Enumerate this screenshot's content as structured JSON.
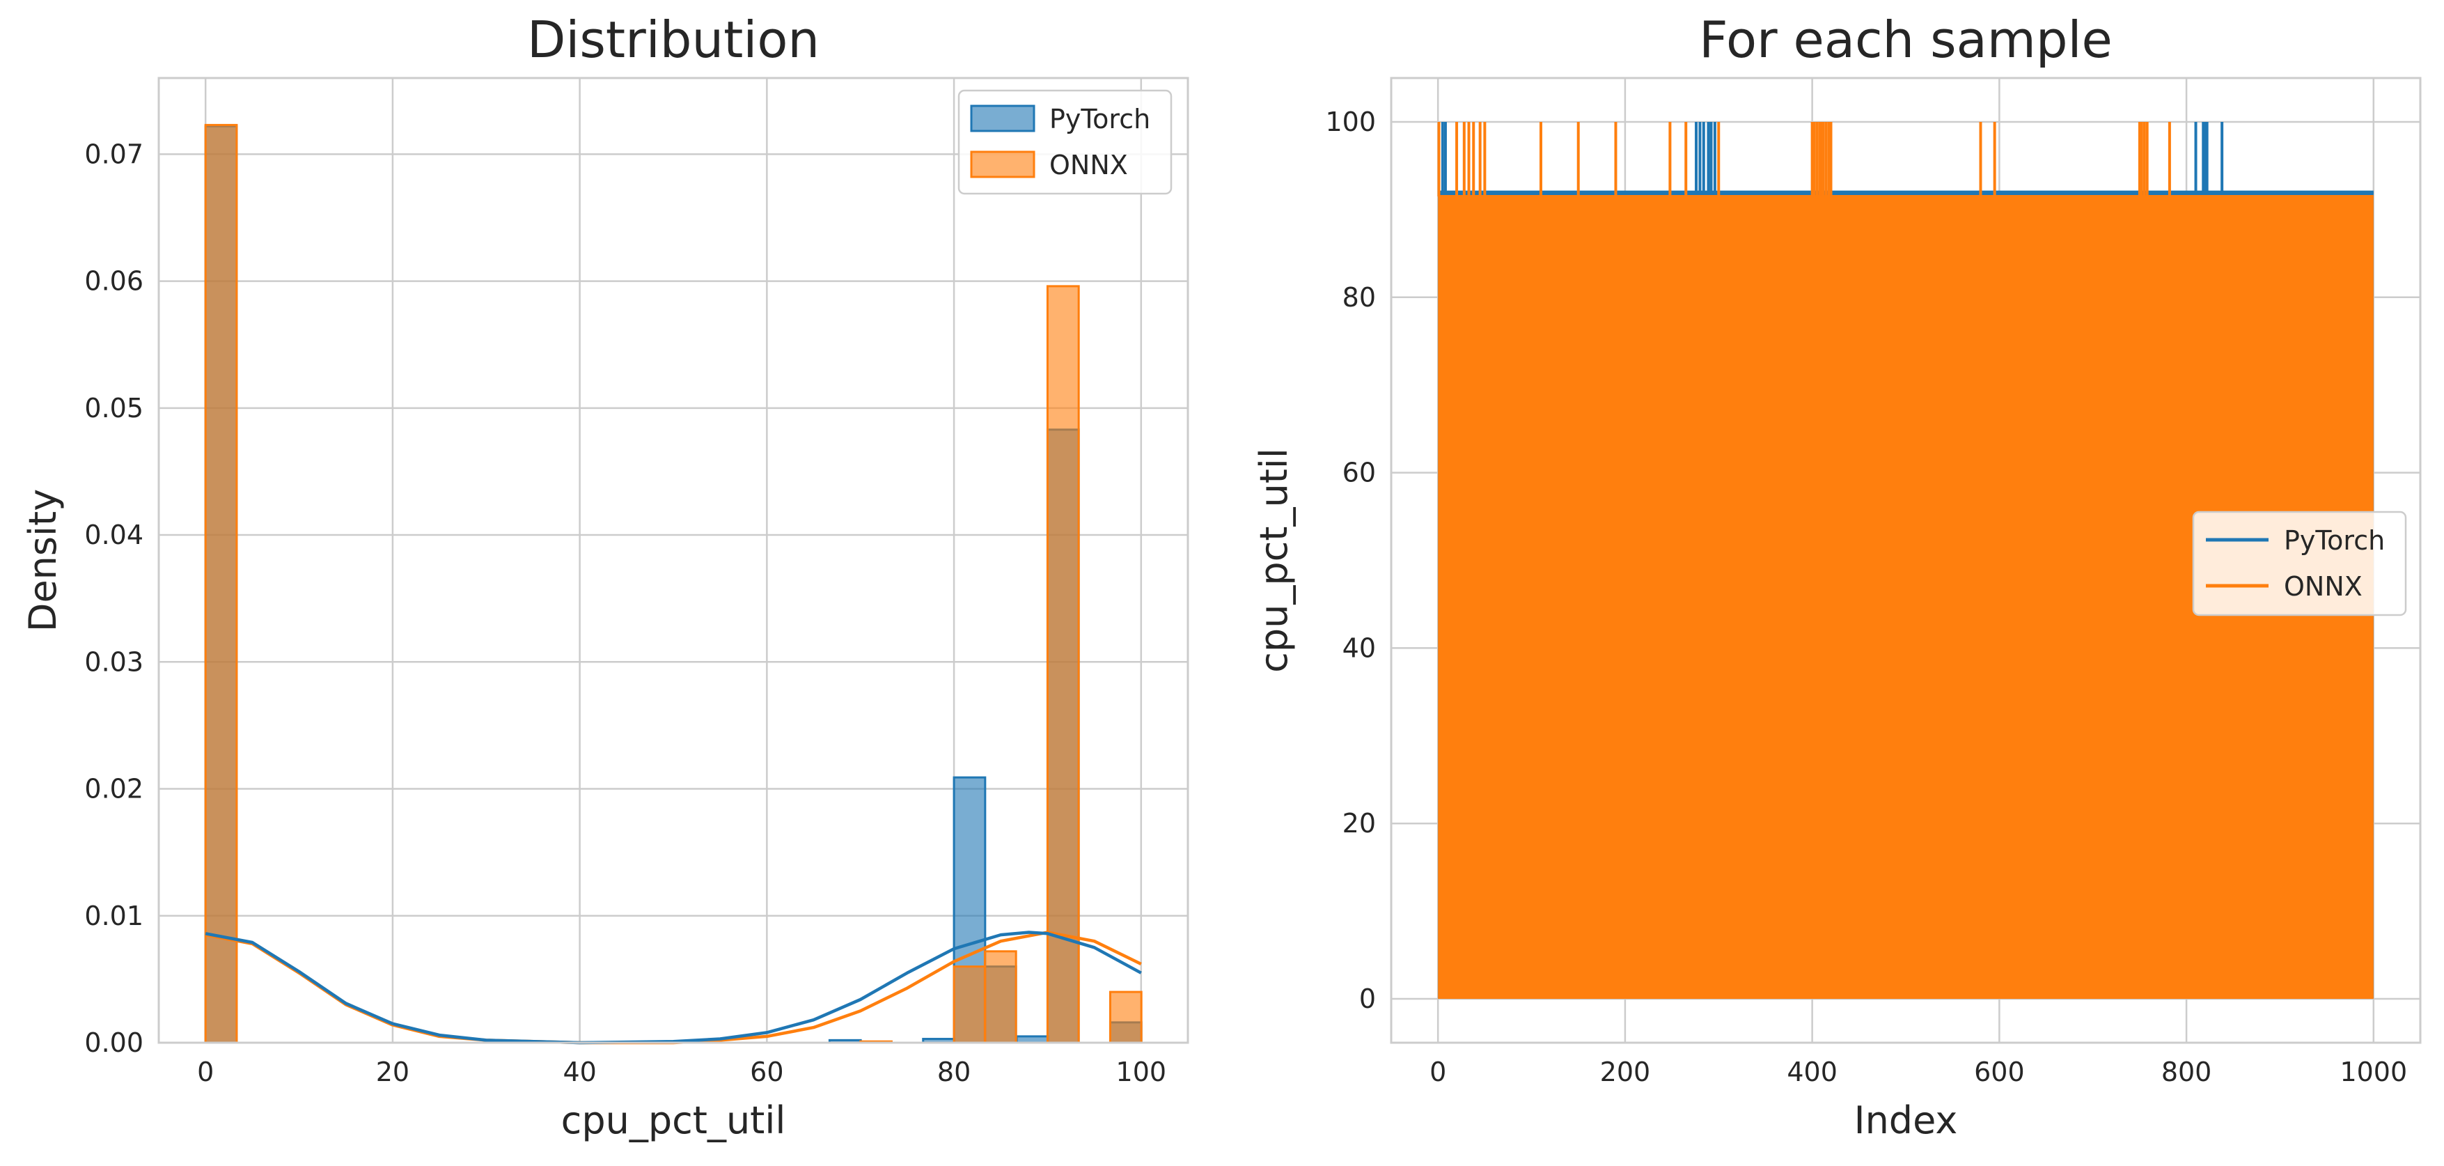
{
  "chart_data": [
    {
      "type": "histogram",
      "title": "Distribution",
      "xlabel": "cpu_pct_util",
      "ylabel": "Density",
      "xlim": [
        -5,
        105
      ],
      "ylim": [
        0,
        0.076
      ],
      "xticks": [
        0,
        20,
        40,
        60,
        80,
        100
      ],
      "yticks": [
        0.0,
        0.01,
        0.02,
        0.03,
        0.04,
        0.05,
        0.06,
        0.07
      ],
      "ytick_labels": [
        "0.00",
        "0.01",
        "0.02",
        "0.03",
        "0.04",
        "0.05",
        "0.06",
        "0.07"
      ],
      "grid": true,
      "legend_position": "top-right",
      "bin_width": 3.33,
      "bin_starts": [
        0,
        80,
        90,
        96.7
      ],
      "series": [
        {
          "name": "PyTorch",
          "color": "#1f77b4",
          "bins": [
            {
              "x": 0,
              "density": 0.0722
            },
            {
              "x": 66.7,
              "density": 0.0002
            },
            {
              "x": 76.7,
              "density": 0.0003
            },
            {
              "x": 80,
              "density": 0.0209
            },
            {
              "x": 83.3,
              "density": 0.006
            },
            {
              "x": 86.7,
              "density": 0.0005
            },
            {
              "x": 90,
              "density": 0.0483
            },
            {
              "x": 96.7,
              "density": 0.0016
            }
          ],
          "kde": [
            [
              0,
              0.0086
            ],
            [
              5,
              0.0079
            ],
            [
              10,
              0.0056
            ],
            [
              15,
              0.0031
            ],
            [
              20,
              0.0015
            ],
            [
              25,
              0.0006
            ],
            [
              30,
              0.0002
            ],
            [
              40,
              0.0
            ],
            [
              50,
              0.0001
            ],
            [
              55,
              0.0003
            ],
            [
              60,
              0.0008
            ],
            [
              65,
              0.0018
            ],
            [
              70,
              0.0034
            ],
            [
              75,
              0.0055
            ],
            [
              80,
              0.0074
            ],
            [
              85,
              0.0085
            ],
            [
              88,
              0.0087
            ],
            [
              90,
              0.0086
            ],
            [
              95,
              0.0075
            ],
            [
              100,
              0.0055
            ]
          ]
        },
        {
          "name": "ONNX",
          "color": "#ff7f0e",
          "bins": [
            {
              "x": 0,
              "density": 0.0723
            },
            {
              "x": 70,
              "density": 0.0001
            },
            {
              "x": 80,
              "density": 0.006
            },
            {
              "x": 83.3,
              "density": 0.0072
            },
            {
              "x": 90,
              "density": 0.0596
            },
            {
              "x": 96.7,
              "density": 0.004
            }
          ],
          "kde": [
            [
              0,
              0.0085
            ],
            [
              5,
              0.0078
            ],
            [
              10,
              0.0055
            ],
            [
              15,
              0.003
            ],
            [
              20,
              0.0014
            ],
            [
              25,
              0.0005
            ],
            [
              30,
              0.0002
            ],
            [
              40,
              0.0
            ],
            [
              50,
              0.0
            ],
            [
              55,
              0.0002
            ],
            [
              60,
              0.0005
            ],
            [
              65,
              0.0012
            ],
            [
              70,
              0.0025
            ],
            [
              75,
              0.0043
            ],
            [
              80,
              0.0064
            ],
            [
              85,
              0.008
            ],
            [
              90,
              0.0087
            ],
            [
              95,
              0.008
            ],
            [
              100,
              0.0062
            ]
          ]
        }
      ]
    },
    {
      "type": "line",
      "title": "For each sample",
      "xlabel": "Index",
      "ylabel": "cpu_pct_util",
      "xlim": [
        -50,
        1050
      ],
      "ylim": [
        -5,
        105
      ],
      "xticks": [
        0,
        200,
        400,
        600,
        800,
        1000
      ],
      "yticks": [
        0,
        20,
        40,
        60,
        80,
        100
      ],
      "grid": true,
      "legend_position": "center-right",
      "series": [
        {
          "name": "PyTorch",
          "color": "#1f77b4",
          "x_range": [
            0,
            1000
          ],
          "low": 0,
          "high": 92,
          "spike_value": 100,
          "spike_x": [
            5,
            8,
            276,
            280,
            284,
            289,
            292,
            296,
            810,
            818,
            820,
            822,
            838
          ]
        },
        {
          "name": "ONNX",
          "color": "#ff7f0e",
          "x_range": [
            0,
            1000
          ],
          "low": 0,
          "high": 91.5,
          "spike_value": 100,
          "spike_x": [
            1,
            20,
            28,
            33,
            38,
            45,
            50,
            110,
            150,
            190,
            248,
            265,
            300,
            400,
            402,
            405,
            408,
            410,
            412,
            415,
            418,
            420,
            580,
            595,
            750,
            752,
            755,
            758,
            782
          ]
        }
      ]
    }
  ]
}
